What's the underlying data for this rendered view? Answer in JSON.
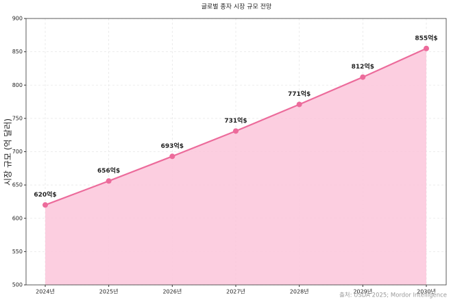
{
  "chart_data": {
    "type": "line",
    "title": "글로벌 종자 시장 규모 전망",
    "ylabel": "시장 규모 (억 달러)",
    "source": "출처: USDA 2025; Mordor Intelligence",
    "categories": [
      "2024년",
      "2025년",
      "2026년",
      "2027년",
      "2028년",
      "2029년",
      "2030년"
    ],
    "values": [
      620,
      656,
      693,
      731,
      771,
      812,
      855
    ],
    "value_labels": [
      "620억$",
      "656억$",
      "693억$",
      "731억$",
      "771억$",
      "812억$",
      "855억$"
    ],
    "color": "#ec6b9b",
    "fill_color": "#fcc6da",
    "ylim": [
      500,
      900
    ],
    "yticks": [
      500,
      550,
      600,
      650,
      700,
      750,
      800,
      850,
      900
    ],
    "grid": true
  }
}
